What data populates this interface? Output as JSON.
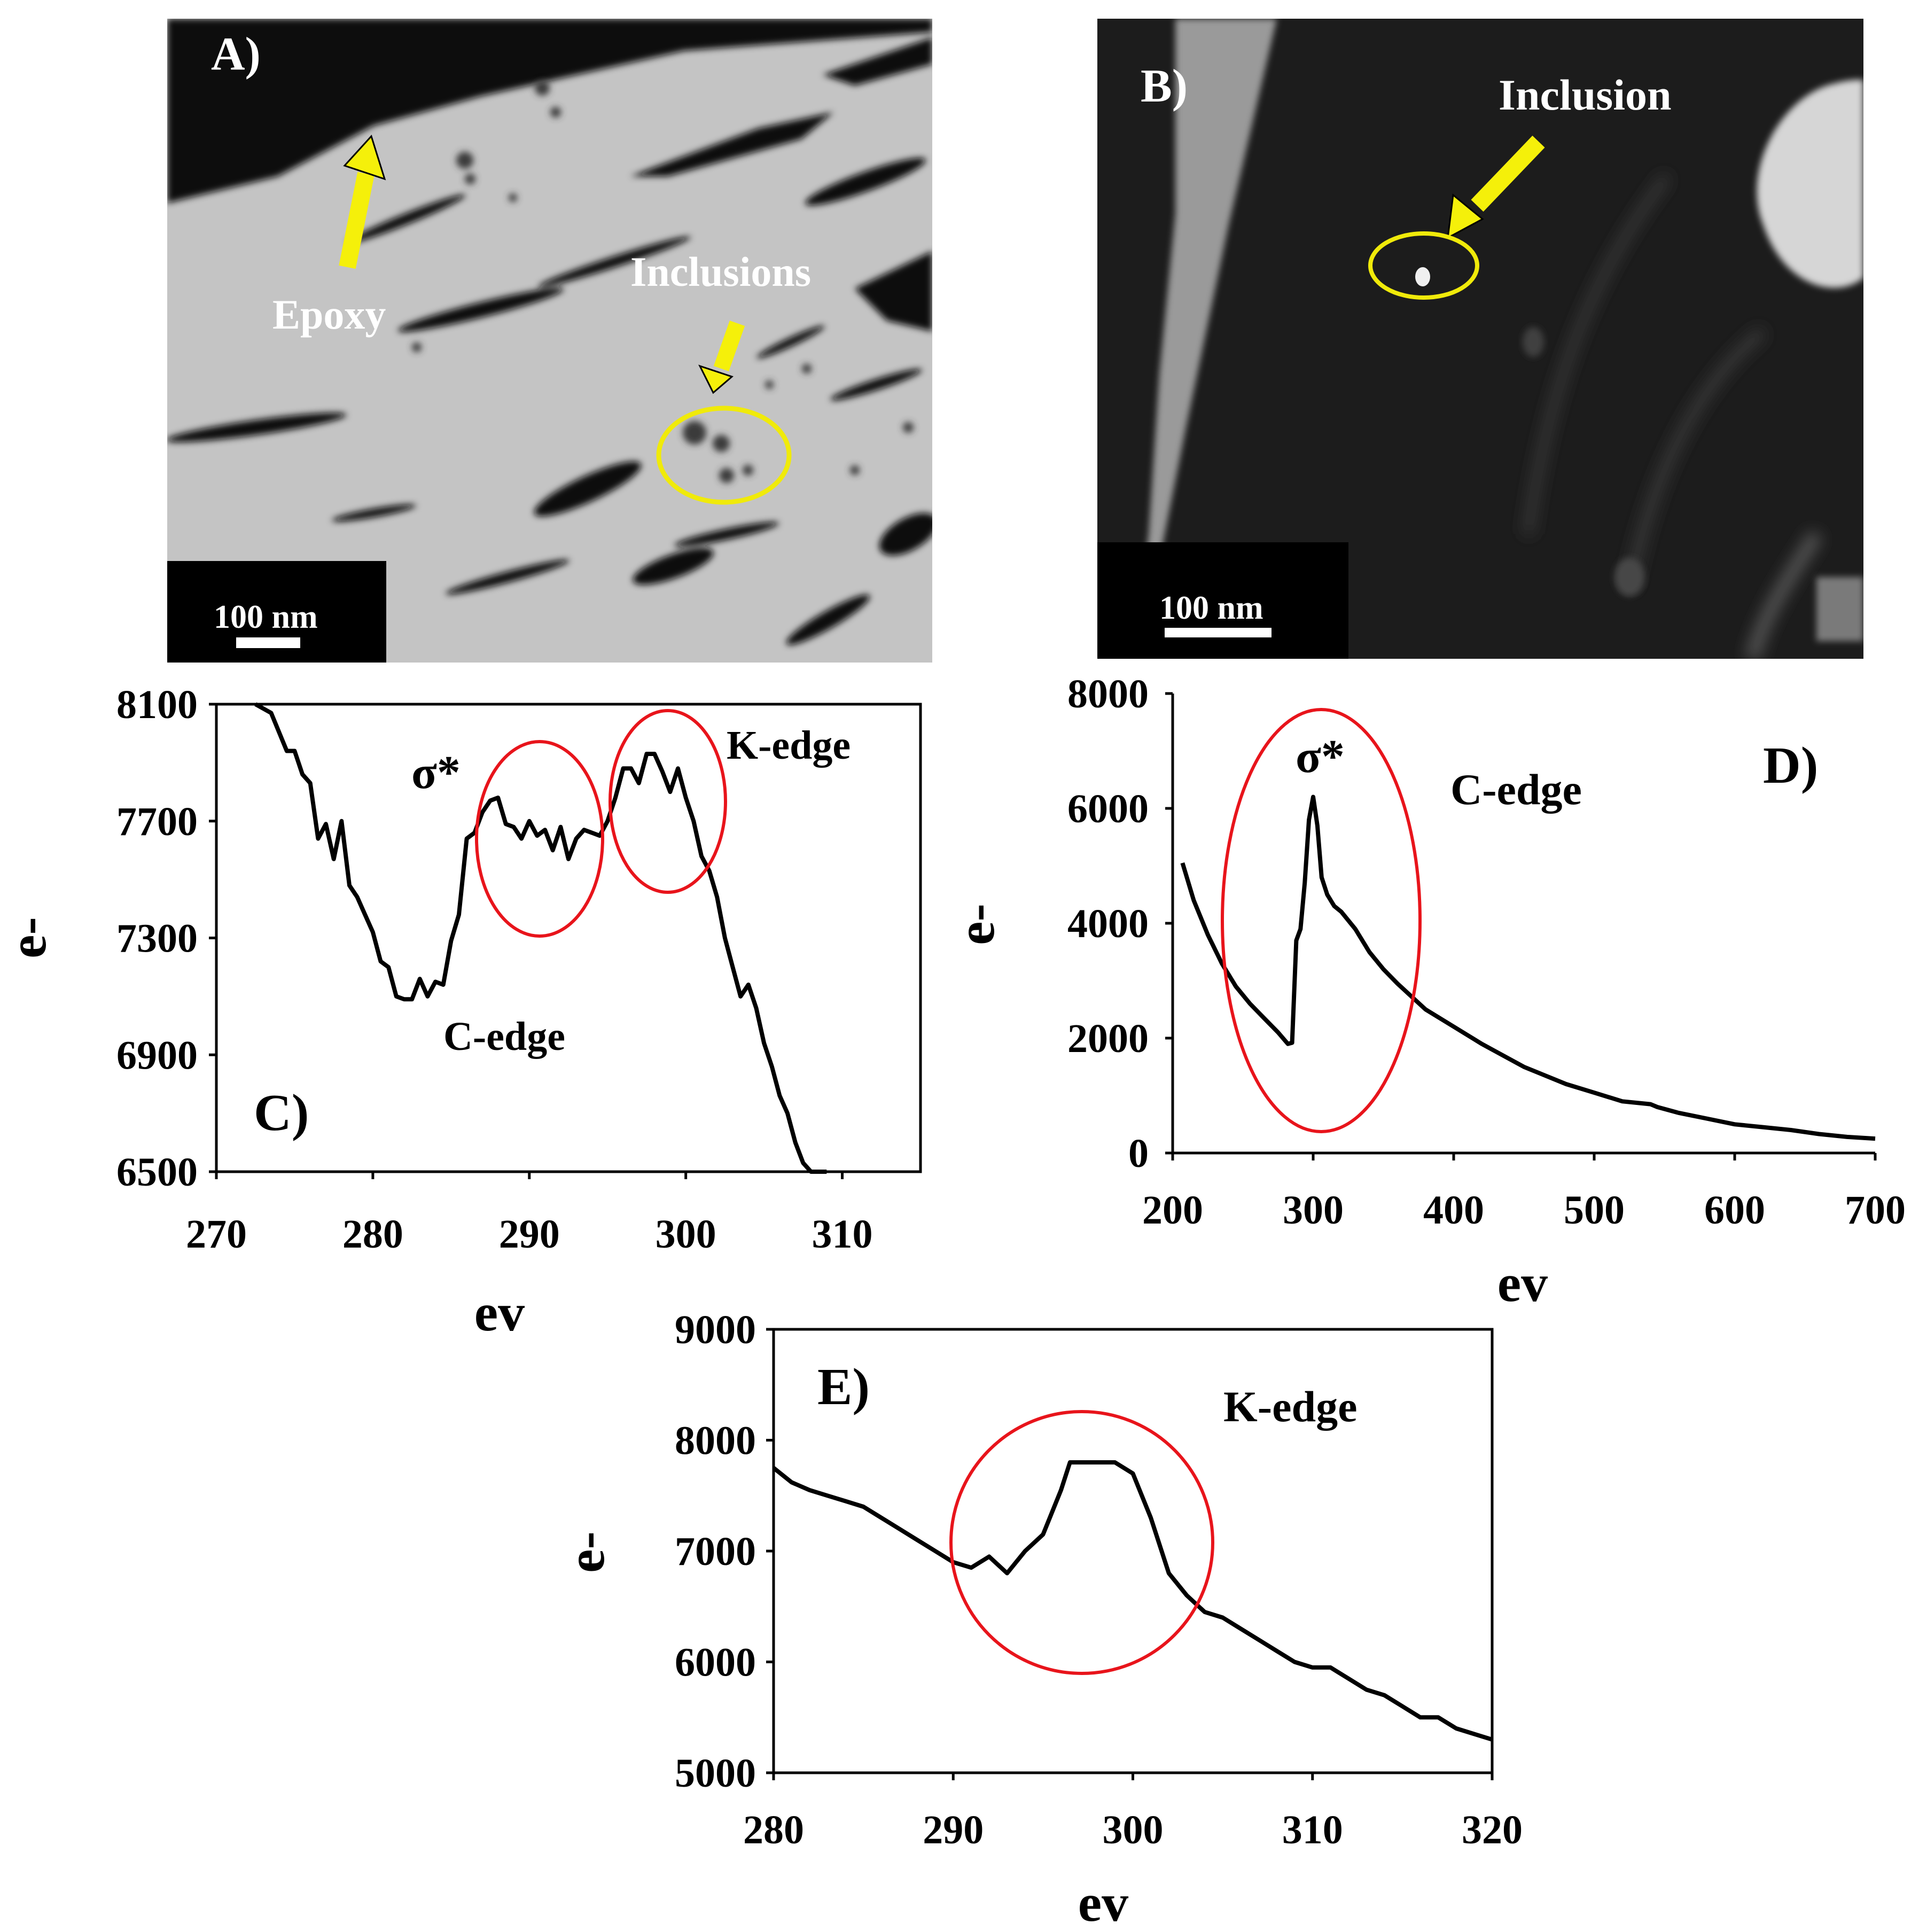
{
  "panels": {
    "a": {
      "label": "A)",
      "scale_bar": "100 nm",
      "annotations": [
        "Epoxy",
        "Inclusions"
      ]
    },
    "b": {
      "label": "B)",
      "scale_bar": "100 nm",
      "annotations": [
        "Inclusion"
      ]
    }
  },
  "colors": {
    "trace": "#000000",
    "highlight_circle": "#e8141b",
    "arrow": "#f5f00a",
    "image_circle": "#f0ea0a"
  },
  "chart_data": [
    {
      "id": "C",
      "type": "line",
      "panel_label": "C)",
      "xlabel": "ev",
      "ylabel": "e-",
      "xlim": [
        270,
        315
      ],
      "ylim": [
        6500,
        8100
      ],
      "xticks": [
        270,
        280,
        290,
        300,
        310
      ],
      "yticks": [
        6500,
        6900,
        7300,
        7700,
        8100
      ],
      "annotations": [
        "σ*",
        "K-edge",
        "C-edge"
      ],
      "series": [
        {
          "x": [
            272.5,
            273.5,
            274.5,
            275,
            275.5,
            276,
            276.5,
            277,
            277.5,
            278,
            278.5,
            279,
            279.5,
            280,
            280.5,
            281,
            281.5,
            282,
            282.5,
            283,
            283.5,
            284,
            284.5,
            285,
            285.5,
            286,
            286.5,
            287,
            287.5,
            288,
            288.5,
            289,
            289.5,
            290,
            290.5,
            291,
            291.5,
            292,
            292.5,
            293,
            293.5,
            294,
            294.5,
            295,
            295.5,
            296,
            296.5,
            297,
            297.5,
            298,
            298.5,
            299,
            299.5,
            300,
            300.5,
            301,
            301.5,
            302,
            302.5,
            303,
            303.5,
            304,
            304.5,
            305,
            305.5,
            306,
            306.5,
            307,
            307.5,
            308,
            308.5,
            309
          ],
          "y": [
            8100,
            8070,
            7940,
            7940,
            7860,
            7830,
            7640,
            7690,
            7570,
            7700,
            7480,
            7440,
            7380,
            7320,
            7220,
            7200,
            7100,
            7090,
            7090,
            7160,
            7100,
            7150,
            7140,
            7290,
            7380,
            7640,
            7660,
            7730,
            7770,
            7780,
            7690,
            7680,
            7640,
            7700,
            7650,
            7670,
            7600,
            7680,
            7570,
            7640,
            7670,
            7660,
            7650,
            7700,
            7780,
            7880,
            7880,
            7830,
            7930,
            7930,
            7870,
            7800,
            7880,
            7780,
            7700,
            7580,
            7530,
            7440,
            7300,
            7200,
            7100,
            7140,
            7060,
            6940,
            6860,
            6760,
            6700,
            6600,
            6530,
            6500,
            6500,
            6480
          ]
        }
      ]
    },
    {
      "id": "D",
      "type": "line",
      "panel_label": "D)",
      "xlabel": "ev",
      "ylabel": "e-",
      "xlim": [
        200,
        700
      ],
      "ylim": [
        0,
        8000
      ],
      "xticks": [
        200,
        300,
        400,
        500,
        600,
        700
      ],
      "yticks": [
        0,
        2000,
        4000,
        6000,
        8000
      ],
      "annotations": [
        "σ*",
        "C-edge"
      ],
      "series": [
        {
          "x": [
            207,
            215,
            225,
            235,
            245,
            255,
            265,
            275,
            282,
            285,
            288,
            291,
            294,
            297,
            300,
            303,
            306,
            310,
            315,
            320,
            330,
            340,
            350,
            360,
            380,
            400,
            420,
            450,
            480,
            500,
            520,
            540,
            545,
            560,
            580,
            600,
            620,
            640,
            660,
            680,
            700
          ],
          "y": [
            5050,
            4400,
            3800,
            3300,
            2900,
            2600,
            2350,
            2100,
            1900,
            1920,
            3700,
            3900,
            4700,
            5800,
            6200,
            5700,
            4800,
            4500,
            4300,
            4200,
            3900,
            3500,
            3200,
            2950,
            2500,
            2200,
            1900,
            1500,
            1200,
            1050,
            900,
            850,
            800,
            700,
            600,
            500,
            450,
            400,
            330,
            280,
            250
          ]
        }
      ]
    },
    {
      "id": "E",
      "type": "line",
      "panel_label": "E)",
      "xlabel": "ev",
      "ylabel": "e-",
      "xlim": [
        280,
        320
      ],
      "ylim": [
        5000,
        9000
      ],
      "xticks": [
        280,
        290,
        300,
        310,
        320
      ],
      "yticks": [
        5000,
        6000,
        7000,
        8000,
        9000
      ],
      "annotations": [
        "K-edge"
      ],
      "series": [
        {
          "x": [
            280,
            281,
            282,
            283,
            284,
            285,
            286,
            287,
            288,
            289,
            290,
            291,
            292,
            293,
            294,
            295,
            296,
            296.5,
            297,
            298,
            299,
            300,
            301,
            302,
            303,
            304,
            305,
            306,
            307,
            308,
            309,
            310,
            311,
            312,
            313,
            314,
            315,
            316,
            317,
            318,
            319,
            320
          ],
          "y": [
            7750,
            7620,
            7550,
            7500,
            7450,
            7400,
            7300,
            7200,
            7100,
            7000,
            6900,
            6850,
            6950,
            6800,
            7000,
            7150,
            7550,
            7800,
            7800,
            7800,
            7800,
            7700,
            7300,
            6800,
            6600,
            6450,
            6400,
            6300,
            6200,
            6100,
            6000,
            5950,
            5950,
            5850,
            5750,
            5700,
            5600,
            5500,
            5500,
            5400,
            5350,
            5300
          ]
        }
      ]
    }
  ]
}
